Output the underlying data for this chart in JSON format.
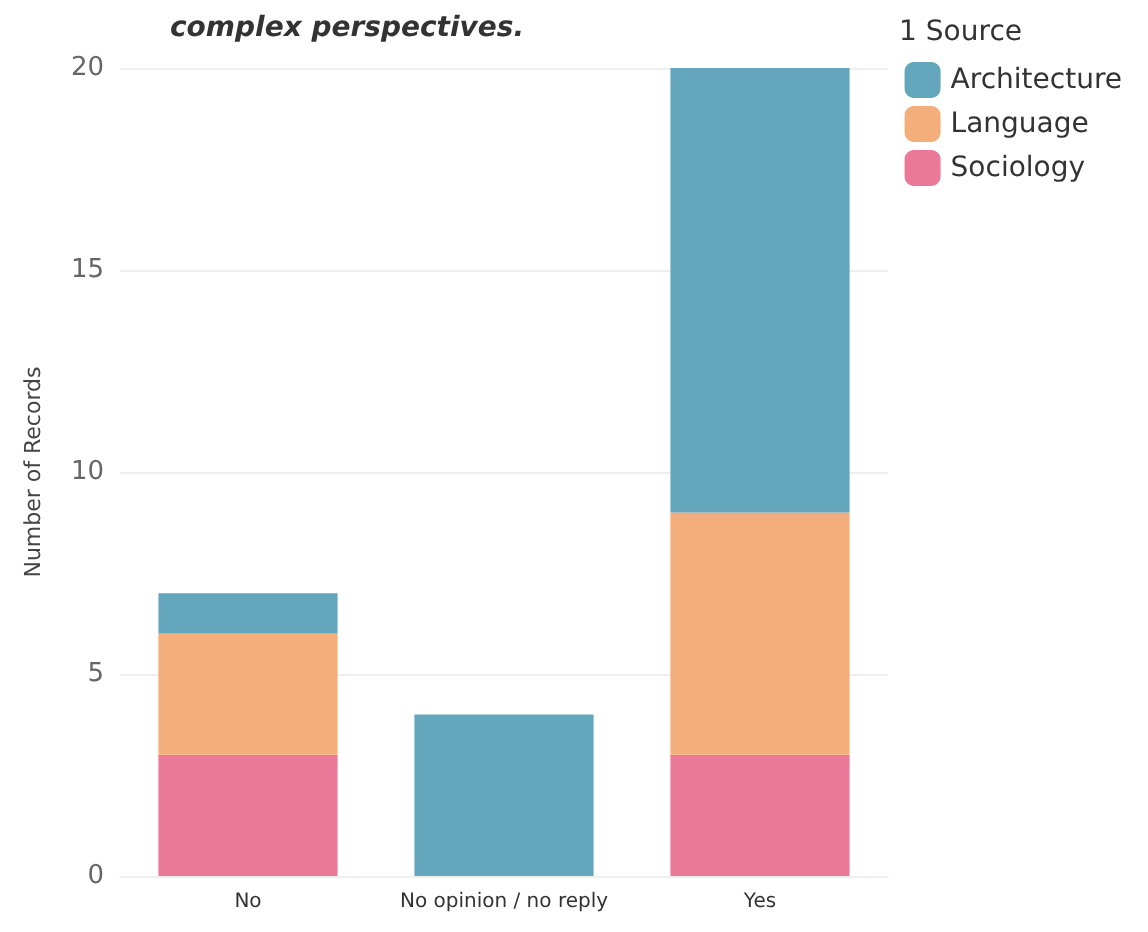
{
  "chart_data": {
    "type": "bar",
    "title": "complex perspectives.",
    "ylabel": "Number of Records",
    "legend_title": "1 Source",
    "categories": [
      "No",
      "No opinion / no reply",
      "Yes"
    ],
    "stacked": true,
    "series": [
      {
        "name": "Sociology",
        "color": "#ea7899",
        "values": [
          3,
          0,
          3
        ]
      },
      {
        "name": "Language",
        "color": "#f3ae7b",
        "values": [
          3,
          0,
          6
        ]
      },
      {
        "name": "Architecture",
        "color": "#64a6bb",
        "values": [
          1,
          4,
          11
        ]
      }
    ],
    "ylim": [
      0,
      20
    ],
    "yticks": [
      0,
      5,
      10,
      15,
      20
    ],
    "grid": "y",
    "legend": "top right"
  }
}
